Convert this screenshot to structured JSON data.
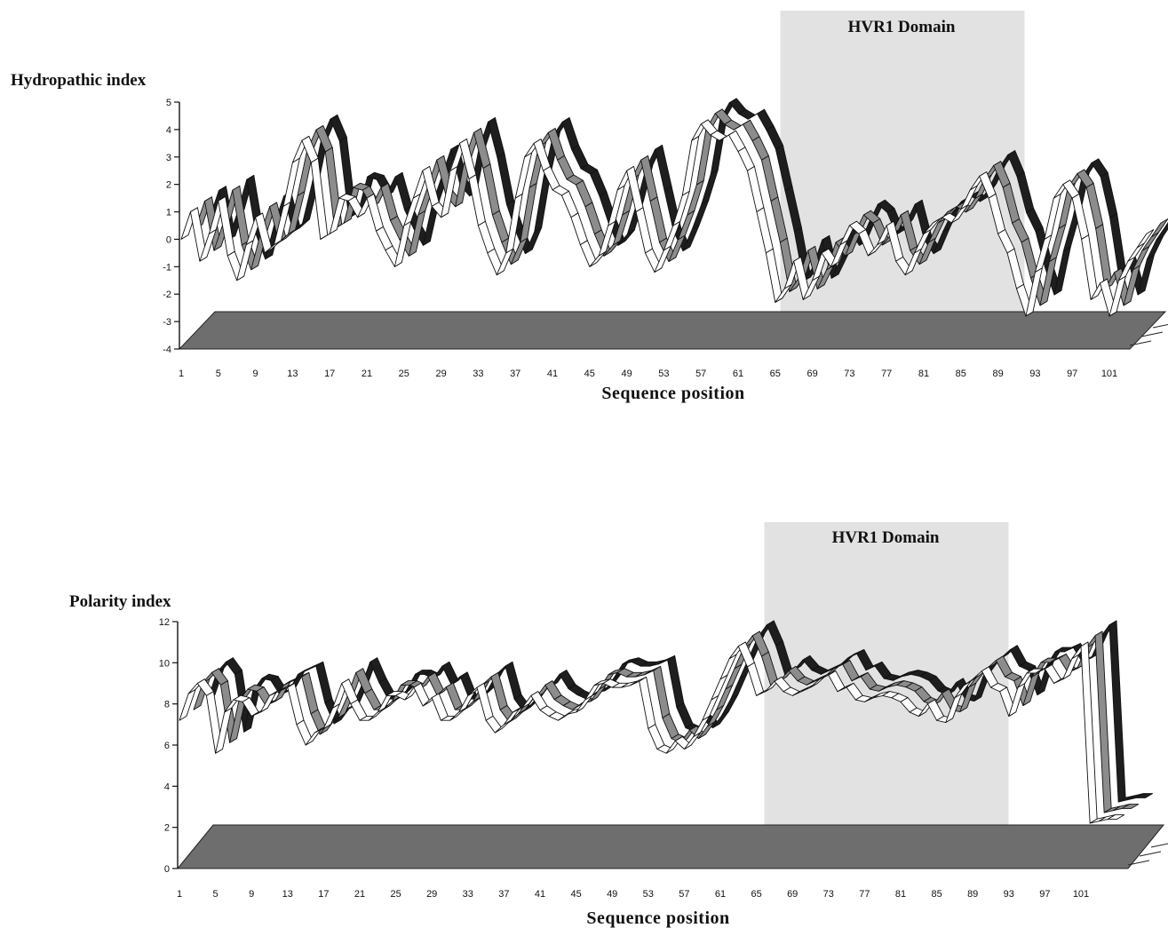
{
  "chart_data": [
    {
      "type": "area",
      "ylabel": "Hydropathic index",
      "xlabel": "Sequence position",
      "region_label": "HVR1 Domain",
      "region_x": [
        66,
        92
      ],
      "ylim": [
        -4,
        5
      ],
      "yticks": [
        "5",
        "4",
        "3",
        "2",
        "1",
        "0",
        "-1",
        "-2",
        "-3",
        "-4"
      ],
      "xticks": [
        "1",
        "5",
        "9",
        "13",
        "17",
        "21",
        "25",
        "29",
        "33",
        "37",
        "41",
        "45",
        "49",
        "53",
        "57",
        "61",
        "65",
        "69",
        "73",
        "77",
        "81",
        "85",
        "89",
        "93",
        "97",
        "101"
      ],
      "series_colors": [
        "#ffffff",
        "#8c8c8c",
        "#1e1e1e"
      ],
      "floor_color": "#6e6e6e",
      "x": [
        1,
        2,
        3,
        4,
        5,
        6,
        7,
        8,
        9,
        10,
        11,
        12,
        13,
        14,
        15,
        16,
        17,
        18,
        19,
        20,
        21,
        22,
        23,
        24,
        25,
        26,
        27,
        28,
        29,
        30,
        31,
        32,
        33,
        34,
        35,
        36,
        37,
        38,
        39,
        40,
        41,
        42,
        43,
        44,
        45,
        46,
        47,
        48,
        49,
        50,
        51,
        52,
        53,
        54,
        55,
        56,
        57,
        58,
        59,
        60,
        61,
        62,
        63,
        64,
        65,
        66,
        67,
        68,
        69,
        70,
        71,
        72,
        73,
        74,
        75,
        76,
        77,
        78,
        79,
        80,
        81,
        82,
        83,
        84,
        85,
        86,
        87,
        88,
        89,
        90,
        91,
        92,
        93,
        94,
        95,
        96,
        97,
        98,
        99,
        100,
        101,
        102,
        103,
        104,
        105
      ],
      "series": [
        {
          "values": [
            0,
            1,
            -0.8,
            0.2,
            1.4,
            -0.6,
            -1.5,
            -0.2,
            0.8,
            -0.5,
            -0.2,
            1.2,
            2.8,
            3.6,
            2.8,
            0,
            0.2,
            1.5,
            1.4,
            0.8,
            1.5,
            0.3,
            -0.4,
            -1,
            0.5,
            1.5,
            2.5,
            1.2,
            0.8,
            2.5,
            3.5,
            2.2,
            0.5,
            -0.5,
            -1.3,
            -0.5,
            1.5,
            3,
            3.5,
            2.5,
            1.8,
            1.6,
            0.8,
            -0.2,
            -1,
            -0.6,
            0.5,
            1.8,
            2.5,
            1,
            -0.5,
            -1.2,
            -0.4,
            0.5,
            1.6,
            3.6,
            4.2,
            3.8,
            3.6,
            3.8,
            3.2,
            2.5,
            1,
            -0.5,
            -2.3,
            -1.8,
            -0.8,
            -2.2,
            -1.5,
            -0.5,
            -1,
            -0.2,
            0.5,
            0.2,
            -0.6,
            -0.2,
            0.5,
            -0.8,
            -1.3,
            -0.5,
            0.2,
            0.6,
            0.8,
            0.6,
            1.1,
            1.8,
            2.3,
            1.5,
            0.2,
            -0.5,
            -1.8,
            -2.8,
            -1.2,
            0,
            1.5,
            2,
            1.5,
            0,
            -2.2,
            -1.6,
            -2.8,
            -1.5,
            -0.8,
            -0.3,
            0.2
          ]
        }
      ]
    },
    {
      "type": "area",
      "ylabel": "Polarity index",
      "xlabel": "Sequence position",
      "region_label": "HVR1 Domain",
      "region_x": [
        66,
        92
      ],
      "ylim": [
        0,
        12
      ],
      "yticks": [
        "12",
        "10",
        "8",
        "6",
        "4",
        "2",
        "0"
      ],
      "xticks": [
        "1",
        "5",
        "9",
        "13",
        "17",
        "21",
        "25",
        "29",
        "33",
        "37",
        "41",
        "45",
        "49",
        "53",
        "57",
        "61",
        "65",
        "69",
        "73",
        "77",
        "81",
        "85",
        "89",
        "93",
        "97",
        "101"
      ],
      "series_colors": [
        "#ffffff",
        "#8c8c8c",
        "#1e1e1e"
      ],
      "floor_color": "#6e6e6e",
      "x": [
        1,
        2,
        3,
        4,
        5,
        6,
        7,
        8,
        9,
        10,
        11,
        12,
        13,
        14,
        15,
        16,
        17,
        18,
        19,
        20,
        21,
        22,
        23,
        24,
        25,
        26,
        27,
        28,
        29,
        30,
        31,
        32,
        33,
        34,
        35,
        36,
        37,
        38,
        39,
        40,
        41,
        42,
        43,
        44,
        45,
        46,
        47,
        48,
        49,
        50,
        51,
        52,
        53,
        54,
        55,
        56,
        57,
        58,
        59,
        60,
        61,
        62,
        63,
        64,
        65,
        66,
        67,
        68,
        69,
        70,
        71,
        72,
        73,
        74,
        75,
        76,
        77,
        78,
        79,
        80,
        81,
        82,
        83,
        84,
        85,
        86,
        87,
        88,
        89,
        90,
        91,
        92,
        93,
        94,
        95,
        96,
        97,
        98,
        99,
        100,
        101,
        102,
        103,
        104,
        105
      ],
      "series": [
        {
          "values": [
            7.2,
            8.5,
            9,
            8.4,
            5.6,
            7.6,
            8.2,
            8.1,
            7.4,
            7.6,
            8.4,
            8.6,
            8.8,
            7,
            6,
            6.6,
            6.8,
            7.8,
            9,
            8,
            7.2,
            7.2,
            7.6,
            8.4,
            8.4,
            8.2,
            8.8,
            7.9,
            8.3,
            7.2,
            7.2,
            7.6,
            8.4,
            8.8,
            7.2,
            6.6,
            7,
            7.6,
            7.8,
            8.4,
            7.7,
            7.4,
            7.2,
            7.5,
            7.6,
            8.2,
            8.9,
            9,
            8.8,
            8.8,
            8.9,
            9.1,
            6.8,
            5.8,
            5.6,
            6.2,
            5.8,
            6.4,
            7.2,
            8.2,
            9.2,
            10.2,
            10.8,
            9.8,
            8.4,
            8.6,
            9.1,
            8.6,
            8.4,
            8.6,
            8.8,
            9.2,
            9.4,
            8.6,
            8.8,
            8.2,
            8.1,
            8.3,
            8.4,
            8.3,
            8.1,
            7.6,
            7.4,
            8,
            7.2,
            7.1,
            8.3,
            8.9,
            9.2,
            9.6,
            8.8,
            8.6,
            7.4,
            8.8,
            9.5,
            9.5,
            9.7,
            9,
            9.2,
            10.2,
            10.8,
            2.2,
            2.3,
            2.4,
            2.4
          ]
        }
      ]
    }
  ]
}
